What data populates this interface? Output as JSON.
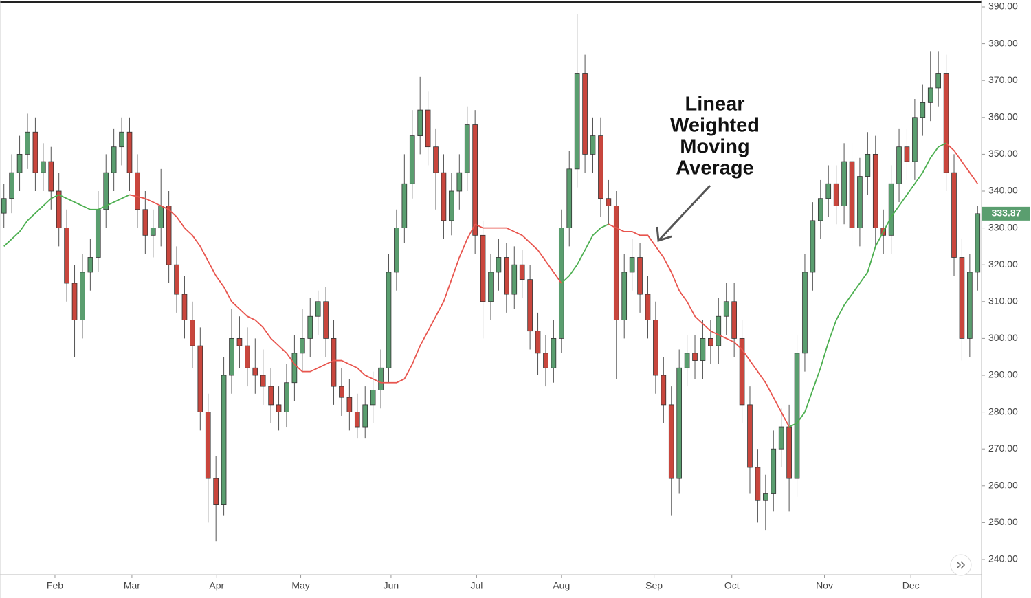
{
  "chart_data": {
    "type": "candlestick",
    "annotation": [
      "Linear",
      "Weighted",
      "Moving",
      "Average"
    ],
    "x": [
      0,
      1,
      2,
      3,
      4,
      5,
      6,
      7,
      8,
      9,
      10,
      11,
      12,
      13,
      14,
      15,
      16,
      17,
      18,
      19,
      20,
      21,
      22,
      23,
      24,
      25,
      26,
      27,
      28,
      29,
      30,
      31,
      32,
      33,
      34,
      35,
      36,
      37,
      38,
      39,
      40,
      41,
      42,
      43,
      44,
      45,
      46,
      47,
      48,
      49,
      50,
      51,
      52,
      53,
      54,
      55,
      56,
      57,
      58,
      59,
      60,
      61,
      62,
      63,
      64,
      65,
      66,
      67,
      68,
      69,
      70,
      71,
      72,
      73,
      74,
      75,
      76,
      77,
      78,
      79,
      80,
      81,
      82,
      83,
      84,
      85,
      86,
      87,
      88,
      89,
      90,
      91,
      92,
      93,
      94,
      95,
      96,
      97,
      98,
      99,
      100,
      101,
      102,
      103,
      104,
      105,
      106,
      107,
      108,
      109,
      110,
      111,
      112,
      113,
      114,
      115,
      116,
      117,
      118,
      119,
      120,
      121,
      122,
      123,
      124
    ],
    "open": [
      334,
      338,
      345,
      350,
      356,
      345,
      348,
      340,
      330,
      315,
      305,
      318,
      322,
      335,
      345,
      352,
      356,
      345,
      335,
      328,
      330,
      336,
      320,
      312,
      305,
      298,
      280,
      262,
      255,
      290,
      300,
      298,
      292,
      290,
      287,
      282,
      280,
      288,
      296,
      300,
      306,
      310,
      300,
      287,
      284,
      280,
      276,
      282,
      286,
      292,
      318,
      330,
      342,
      355,
      362,
      352,
      345,
      332,
      340,
      345,
      358,
      328,
      310,
      318,
      322,
      312,
      320,
      316,
      302,
      296,
      292,
      300,
      330,
      346,
      372,
      350,
      355,
      338,
      336,
      305,
      318,
      322,
      312,
      305,
      290,
      282,
      262,
      292,
      296,
      294,
      300,
      298,
      306,
      310,
      300,
      282,
      265,
      256,
      258,
      270,
      276,
      262,
      296,
      318,
      332,
      338,
      342,
      336,
      348,
      330,
      344,
      350,
      330,
      328,
      342,
      352,
      348,
      360,
      364,
      368,
      372,
      345,
      322,
      300,
      318
    ],
    "high": [
      342,
      350,
      355,
      361,
      360,
      353,
      352,
      345,
      335,
      320,
      323,
      327,
      340,
      350,
      357,
      360,
      360,
      350,
      340,
      335,
      346,
      340,
      325,
      317,
      310,
      303,
      285,
      268,
      295,
      308,
      306,
      303,
      300,
      297,
      292,
      287,
      293,
      301,
      308,
      311,
      313,
      314,
      305,
      292,
      289,
      285,
      287,
      291,
      297,
      323,
      335,
      350,
      362,
      371,
      367,
      357,
      350,
      345,
      350,
      363,
      362,
      332,
      323,
      327,
      326,
      325,
      324,
      320,
      307,
      301,
      305,
      335,
      351,
      388,
      377,
      360,
      360,
      343,
      340,
      323,
      327,
      326,
      317,
      310,
      295,
      287,
      297,
      301,
      301,
      305,
      305,
      311,
      315,
      315,
      305,
      287,
      270,
      263,
      275,
      281,
      282,
      301,
      323,
      337,
      343,
      347,
      347,
      353,
      353,
      349,
      356,
      355,
      335,
      347,
      357,
      357,
      365,
      369,
      378,
      378,
      377,
      350,
      327,
      323,
      336
    ],
    "low": [
      330,
      334,
      340,
      346,
      340,
      340,
      335,
      325,
      310,
      295,
      300,
      313,
      318,
      330,
      340,
      347,
      340,
      330,
      323,
      322,
      325,
      315,
      307,
      300,
      292,
      275,
      250,
      245,
      252,
      285,
      292,
      287,
      285,
      282,
      277,
      275,
      276,
      283,
      291,
      295,
      301,
      295,
      282,
      279,
      275,
      273,
      273,
      277,
      281,
      288,
      313,
      326,
      338,
      350,
      347,
      335,
      327,
      328,
      335,
      340,
      323,
      300,
      305,
      313,
      307,
      308,
      311,
      297,
      290,
      287,
      288,
      296,
      325,
      341,
      345,
      345,
      333,
      331,
      289,
      300,
      313,
      307,
      300,
      285,
      277,
      252,
      258,
      287,
      289,
      289,
      293,
      293,
      301,
      295,
      277,
      258,
      250,
      248,
      253,
      265,
      253,
      257,
      291,
      313,
      327,
      333,
      331,
      331,
      325,
      325,
      339,
      325,
      323,
      323,
      337,
      343,
      343,
      355,
      359,
      363,
      340,
      317,
      294,
      295,
      313
    ],
    "close": [
      338,
      345,
      350,
      356,
      345,
      348,
      340,
      330,
      315,
      305,
      318,
      322,
      335,
      345,
      352,
      356,
      345,
      335,
      328,
      330,
      336,
      320,
      312,
      305,
      298,
      280,
      262,
      255,
      290,
      300,
      298,
      292,
      290,
      287,
      282,
      280,
      288,
      296,
      300,
      306,
      310,
      300,
      287,
      284,
      280,
      276,
      282,
      286,
      292,
      318,
      330,
      342,
      355,
      362,
      352,
      345,
      332,
      340,
      345,
      358,
      328,
      310,
      318,
      322,
      312,
      320,
      316,
      302,
      296,
      292,
      300,
      330,
      346,
      372,
      350,
      355,
      338,
      336,
      305,
      318,
      322,
      312,
      305,
      290,
      282,
      262,
      292,
      296,
      294,
      300,
      298,
      306,
      310,
      300,
      282,
      265,
      256,
      258,
      270,
      276,
      262,
      296,
      318,
      332,
      338,
      342,
      336,
      348,
      330,
      344,
      350,
      330,
      328,
      342,
      352,
      348,
      360,
      364,
      368,
      372,
      345,
      322,
      300,
      318,
      333.87
    ],
    "up_color": "#5a9e6f",
    "down_color": "#c9463d",
    "moving_average": {
      "up_color": "#4caf50",
      "down_color": "#e8554e",
      "values": [
        325,
        327,
        329,
        332,
        334,
        336,
        338,
        339,
        338,
        337,
        336,
        335,
        335,
        336,
        337,
        338,
        339,
        338.5,
        338,
        337,
        336,
        335,
        333,
        330,
        328,
        325,
        321,
        317,
        314,
        310,
        308,
        306,
        305,
        303,
        300,
        298,
        296,
        293,
        291,
        291,
        292,
        293,
        294,
        294,
        293,
        292,
        290,
        289,
        288,
        288,
        288,
        289,
        293,
        298,
        302,
        306,
        310,
        316,
        322,
        327,
        331,
        330,
        330,
        330,
        330,
        329,
        328,
        326,
        324,
        321,
        318,
        315,
        317,
        320,
        324,
        328,
        330,
        331,
        330,
        329,
        329,
        328,
        328,
        325,
        322,
        318,
        313,
        310,
        306,
        304,
        302,
        301,
        300,
        299,
        297,
        294,
        291,
        288,
        284,
        280,
        276,
        277,
        280,
        286,
        292,
        299,
        305,
        309,
        312,
        315,
        318,
        325,
        329,
        333,
        336,
        339,
        342,
        345,
        349,
        352,
        353,
        351,
        348,
        345,
        342
      ]
    },
    "xlim": [
      -0.5,
      124.5
    ],
    "xticks": [
      {
        "value": 6.5,
        "label": "Feb"
      },
      {
        "value": 16.3,
        "label": "Mar"
      },
      {
        "value": 27.1,
        "label": "Apr"
      },
      {
        "value": 37.8,
        "label": "May"
      },
      {
        "value": 49.3,
        "label": "Jun"
      },
      {
        "value": 60.2,
        "label": "Jul"
      },
      {
        "value": 71.0,
        "label": "Aug"
      },
      {
        "value": 82.8,
        "label": "Sep"
      },
      {
        "value": 92.7,
        "label": "Oct"
      },
      {
        "value": 104.5,
        "label": "Nov"
      },
      {
        "value": 115.5,
        "label": "Dec"
      }
    ],
    "ylim": [
      240,
      390
    ],
    "yticks": [
      {
        "value": 240,
        "label": "240.00"
      },
      {
        "value": 250,
        "label": "250.00"
      },
      {
        "value": 260,
        "label": "260.00"
      },
      {
        "value": 270,
        "label": "270.00"
      },
      {
        "value": 280,
        "label": "280.00"
      },
      {
        "value": 290,
        "label": "290.00"
      },
      {
        "value": 300,
        "label": "300.00"
      },
      {
        "value": 310,
        "label": "310.00"
      },
      {
        "value": 320,
        "label": "320.00"
      },
      {
        "value": 330,
        "label": "330.00"
      },
      {
        "value": 340,
        "label": "340.00"
      },
      {
        "value": 350,
        "label": "350.00"
      },
      {
        "value": 360,
        "label": "360.00"
      },
      {
        "value": 370,
        "label": "370.00"
      },
      {
        "value": 380,
        "label": "380.00"
      },
      {
        "value": 390,
        "label": "390.00"
      }
    ],
    "last_price_color": "#5a9e6f"
  }
}
